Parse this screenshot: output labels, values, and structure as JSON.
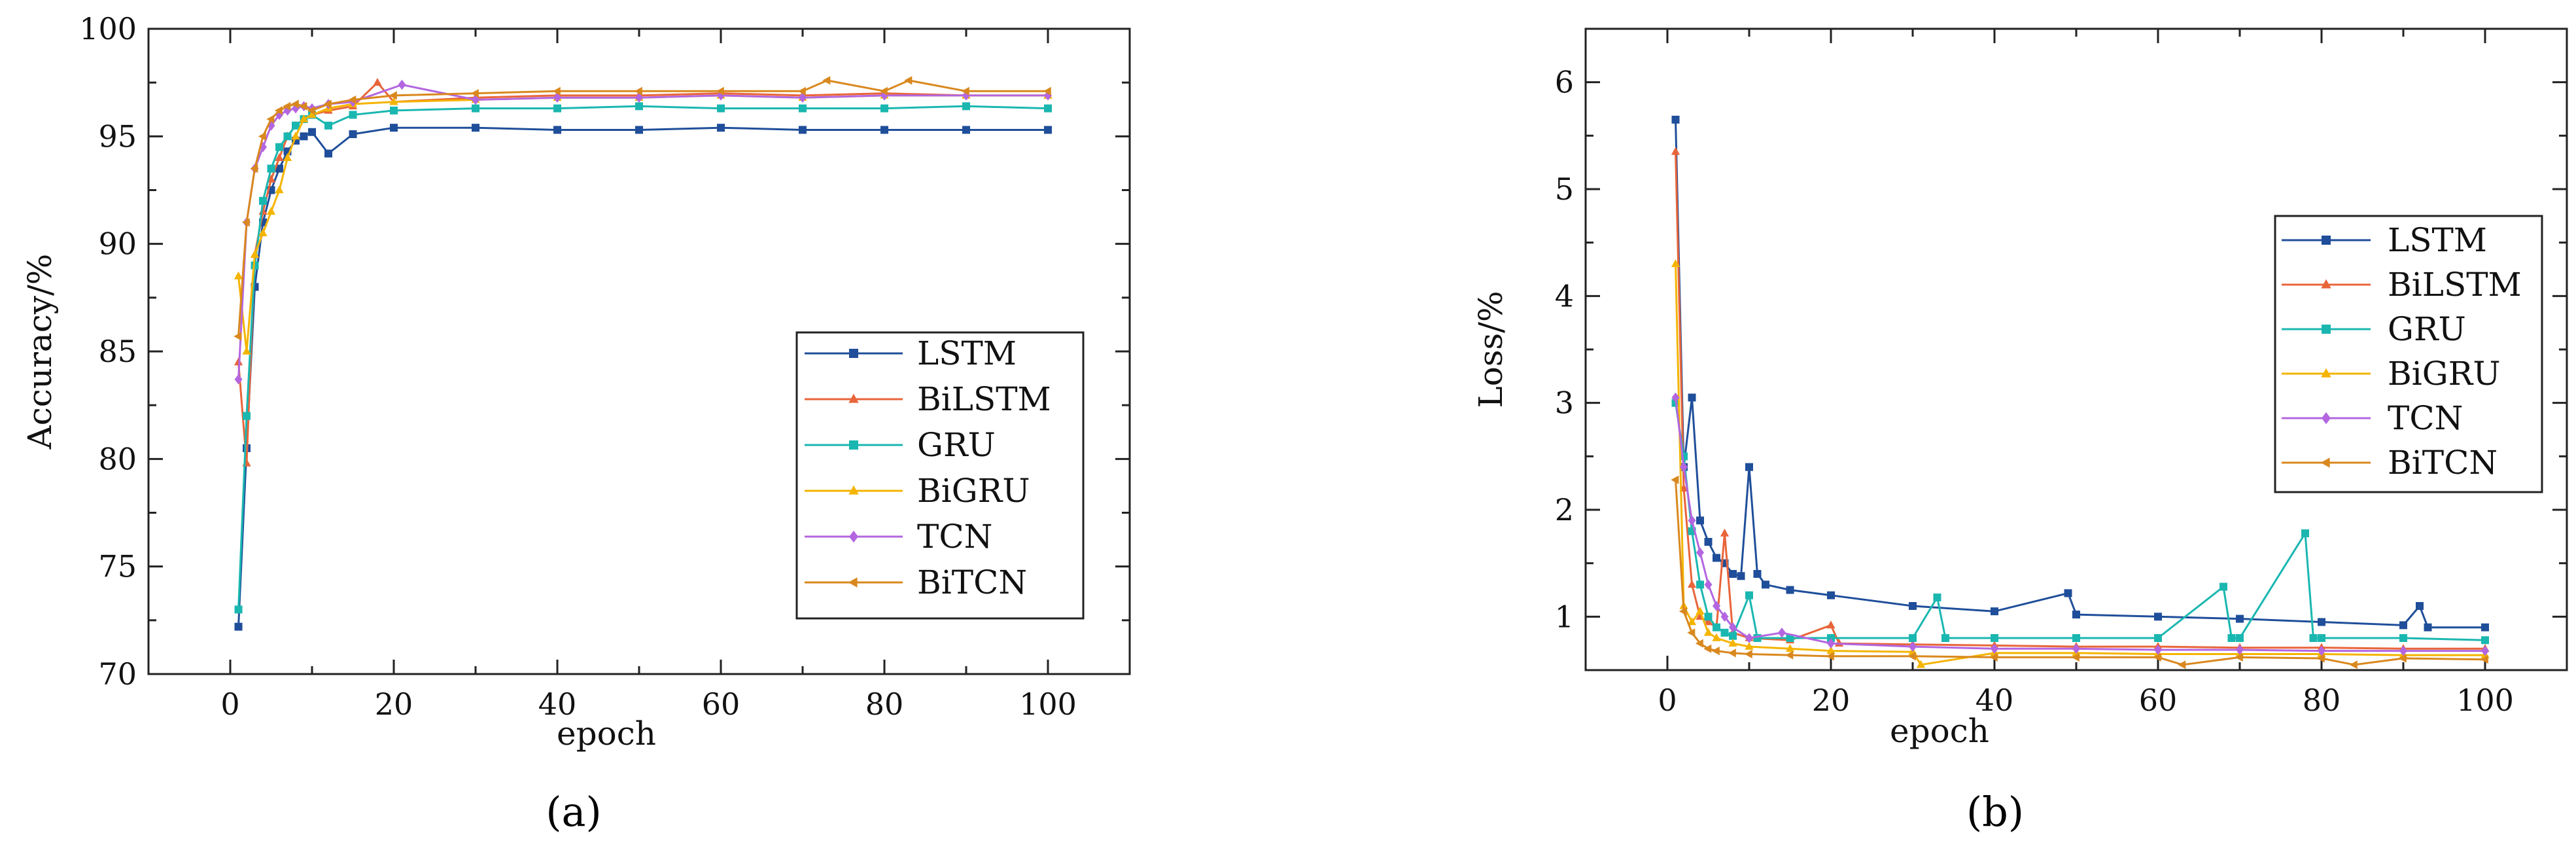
{
  "chart_data": [
    {
      "type": "line",
      "panel_caption": "(a)",
      "xlabel": "epoch",
      "ylabel": "Accuracy/%",
      "xlim": [
        -10,
        110
      ],
      "ylim": [
        70,
        100
      ],
      "xticks": [
        0,
        20,
        40,
        60,
        80,
        100
      ],
      "yticks": [
        70,
        75,
        80,
        85,
        90,
        95,
        100
      ],
      "legend_position": "lower-right",
      "series": [
        {
          "name": "LSTM",
          "color": "#1f4e9a",
          "marker": "square",
          "x": [
            1,
            2,
            3,
            4,
            5,
            6,
            7,
            8,
            9,
            10,
            12,
            15,
            20,
            30,
            40,
            50,
            60,
            70,
            80,
            90,
            100
          ],
          "y": [
            72.2,
            80.5,
            88.0,
            91.0,
            92.5,
            93.5,
            94.3,
            94.8,
            95.0,
            95.2,
            94.2,
            95.1,
            95.4,
            95.4,
            95.3,
            95.3,
            95.4,
            95.3,
            95.3,
            95.3,
            95.3
          ]
        },
        {
          "name": "BiLSTM",
          "color": "#e8653a",
          "marker": "triangle-up",
          "x": [
            1,
            2,
            3,
            4,
            5,
            6,
            7,
            8,
            9,
            10,
            12,
            15,
            18,
            20,
            30,
            40,
            50,
            60,
            70,
            80,
            90,
            100
          ],
          "y": [
            84.5,
            79.8,
            89.5,
            91.5,
            93.0,
            94.0,
            95.0,
            95.5,
            95.8,
            96.0,
            96.2,
            96.4,
            97.5,
            96.6,
            96.8,
            96.9,
            96.9,
            97.0,
            96.9,
            97.0,
            96.9,
            96.9
          ]
        },
        {
          "name": "GRU",
          "color": "#1ab7b0",
          "marker": "square",
          "x": [
            1,
            2,
            3,
            4,
            5,
            6,
            7,
            8,
            9,
            10,
            12,
            15,
            20,
            30,
            40,
            50,
            60,
            70,
            80,
            90,
            100
          ],
          "y": [
            73.0,
            82.0,
            89.0,
            92.0,
            93.5,
            94.5,
            95.0,
            95.5,
            95.8,
            96.0,
            95.5,
            96.0,
            96.2,
            96.3,
            96.3,
            96.4,
            96.3,
            96.3,
            96.3,
            96.4,
            96.3
          ]
        },
        {
          "name": "BiGRU",
          "color": "#f4b400",
          "marker": "triangle-up",
          "x": [
            1,
            2,
            3,
            4,
            5,
            6,
            7,
            8,
            9,
            10,
            12,
            15,
            20,
            30,
            40,
            50,
            60,
            70,
            80,
            90,
            100
          ],
          "y": [
            88.5,
            85.0,
            89.5,
            90.5,
            91.5,
            92.5,
            94.0,
            95.0,
            95.8,
            96.0,
            96.3,
            96.5,
            96.6,
            96.7,
            96.8,
            96.8,
            96.9,
            96.8,
            96.9,
            96.9,
            96.9
          ]
        },
        {
          "name": "TCN",
          "color": "#b366e0",
          "marker": "diamond",
          "x": [
            1,
            2,
            3,
            4,
            5,
            6,
            7,
            8,
            9,
            10,
            12,
            15,
            21,
            30,
            40,
            50,
            60,
            70,
            80,
            90,
            100
          ],
          "y": [
            83.7,
            91.0,
            93.5,
            94.5,
            95.5,
            96.0,
            96.2,
            96.3,
            96.4,
            96.3,
            96.5,
            96.6,
            97.4,
            96.7,
            96.8,
            96.8,
            96.9,
            96.8,
            96.9,
            96.9,
            96.9
          ]
        },
        {
          "name": "BiTCN",
          "color": "#d9881e",
          "marker": "triangle-left",
          "x": [
            1,
            2,
            3,
            4,
            5,
            6,
            7,
            8,
            9,
            10,
            12,
            15,
            20,
            30,
            40,
            50,
            60,
            70,
            73,
            80,
            83,
            90,
            100
          ],
          "y": [
            85.7,
            91.0,
            93.5,
            95.0,
            95.8,
            96.2,
            96.4,
            96.5,
            96.4,
            96.2,
            96.5,
            96.7,
            96.9,
            97.0,
            97.1,
            97.1,
            97.1,
            97.1,
            97.6,
            97.1,
            97.6,
            97.1,
            97.1
          ]
        }
      ]
    },
    {
      "type": "line",
      "panel_caption": "(b)",
      "xlabel": "epoch",
      "ylabel": "Loss/%",
      "xlim": [
        -10,
        110
      ],
      "ylim": [
        0.5,
        6.5
      ],
      "xticks": [
        0,
        20,
        40,
        60,
        80,
        100
      ],
      "yticks": [
        1,
        2,
        3,
        4,
        5,
        6
      ],
      "legend_position": "upper-right",
      "series": [
        {
          "name": "LSTM",
          "color": "#1f4e9a",
          "marker": "square",
          "x": [
            1,
            2,
            3,
            4,
            5,
            6,
            7,
            8,
            9,
            10,
            11,
            12,
            15,
            20,
            30,
            40,
            49,
            50,
            60,
            70,
            80,
            90,
            92,
            93,
            100
          ],
          "y": [
            5.65,
            2.4,
            3.05,
            1.9,
            1.7,
            1.55,
            1.5,
            1.4,
            1.38,
            2.4,
            1.4,
            1.3,
            1.25,
            1.2,
            1.1,
            1.05,
            1.22,
            1.02,
            1.0,
            0.98,
            0.95,
            0.92,
            1.1,
            0.9,
            0.9
          ]
        },
        {
          "name": "BiLSTM",
          "color": "#e8653a",
          "marker": "triangle-up",
          "x": [
            1,
            2,
            3,
            4,
            5,
            6,
            7,
            8,
            10,
            15,
            20,
            21,
            30,
            40,
            50,
            60,
            70,
            80,
            90,
            100
          ],
          "y": [
            5.35,
            2.2,
            1.3,
            1.0,
            0.95,
            0.9,
            1.78,
            0.85,
            0.8,
            0.78,
            0.92,
            0.75,
            0.74,
            0.73,
            0.72,
            0.72,
            0.71,
            0.71,
            0.7,
            0.7
          ]
        },
        {
          "name": "GRU",
          "color": "#1ab7b0",
          "marker": "square",
          "x": [
            1,
            2,
            3,
            4,
            5,
            6,
            7,
            8,
            10,
            11,
            15,
            20,
            30,
            33,
            34,
            40,
            50,
            60,
            68,
            69,
            70,
            78,
            79,
            80,
            90,
            100
          ],
          "y": [
            3.0,
            2.5,
            1.8,
            1.3,
            1.0,
            0.9,
            0.85,
            0.82,
            1.2,
            0.8,
            0.8,
            0.8,
            0.8,
            1.18,
            0.8,
            0.8,
            0.8,
            0.8,
            1.28,
            0.8,
            0.8,
            1.78,
            0.8,
            0.8,
            0.8,
            0.78
          ]
        },
        {
          "name": "BiGRU",
          "color": "#f4b400",
          "marker": "triangle-up",
          "x": [
            1,
            2,
            3,
            4,
            5,
            6,
            8,
            10,
            15,
            20,
            30,
            31,
            40,
            50,
            60,
            70,
            80,
            90,
            100
          ],
          "y": [
            4.3,
            1.1,
            0.95,
            1.05,
            0.85,
            0.8,
            0.75,
            0.72,
            0.7,
            0.68,
            0.67,
            0.55,
            0.66,
            0.66,
            0.65,
            0.65,
            0.65,
            0.64,
            0.64
          ]
        },
        {
          "name": "TCN",
          "color": "#b366e0",
          "marker": "diamond",
          "x": [
            1,
            2,
            3,
            4,
            5,
            6,
            7,
            8,
            10,
            14,
            20,
            30,
            40,
            50,
            60,
            70,
            80,
            90,
            100
          ],
          "y": [
            3.05,
            2.4,
            1.9,
            1.6,
            1.3,
            1.1,
            1.0,
            0.9,
            0.8,
            0.85,
            0.75,
            0.72,
            0.7,
            0.7,
            0.69,
            0.69,
            0.68,
            0.68,
            0.68
          ]
        },
        {
          "name": "BiTCN",
          "color": "#d9881e",
          "marker": "triangle-left",
          "x": [
            1,
            2,
            3,
            4,
            5,
            6,
            8,
            10,
            15,
            20,
            30,
            40,
            50,
            60,
            63,
            70,
            80,
            84,
            90,
            100
          ],
          "y": [
            2.28,
            1.05,
            0.85,
            0.75,
            0.7,
            0.68,
            0.66,
            0.65,
            0.64,
            0.63,
            0.63,
            0.62,
            0.62,
            0.62,
            0.55,
            0.62,
            0.61,
            0.55,
            0.61,
            0.6
          ]
        }
      ]
    }
  ]
}
